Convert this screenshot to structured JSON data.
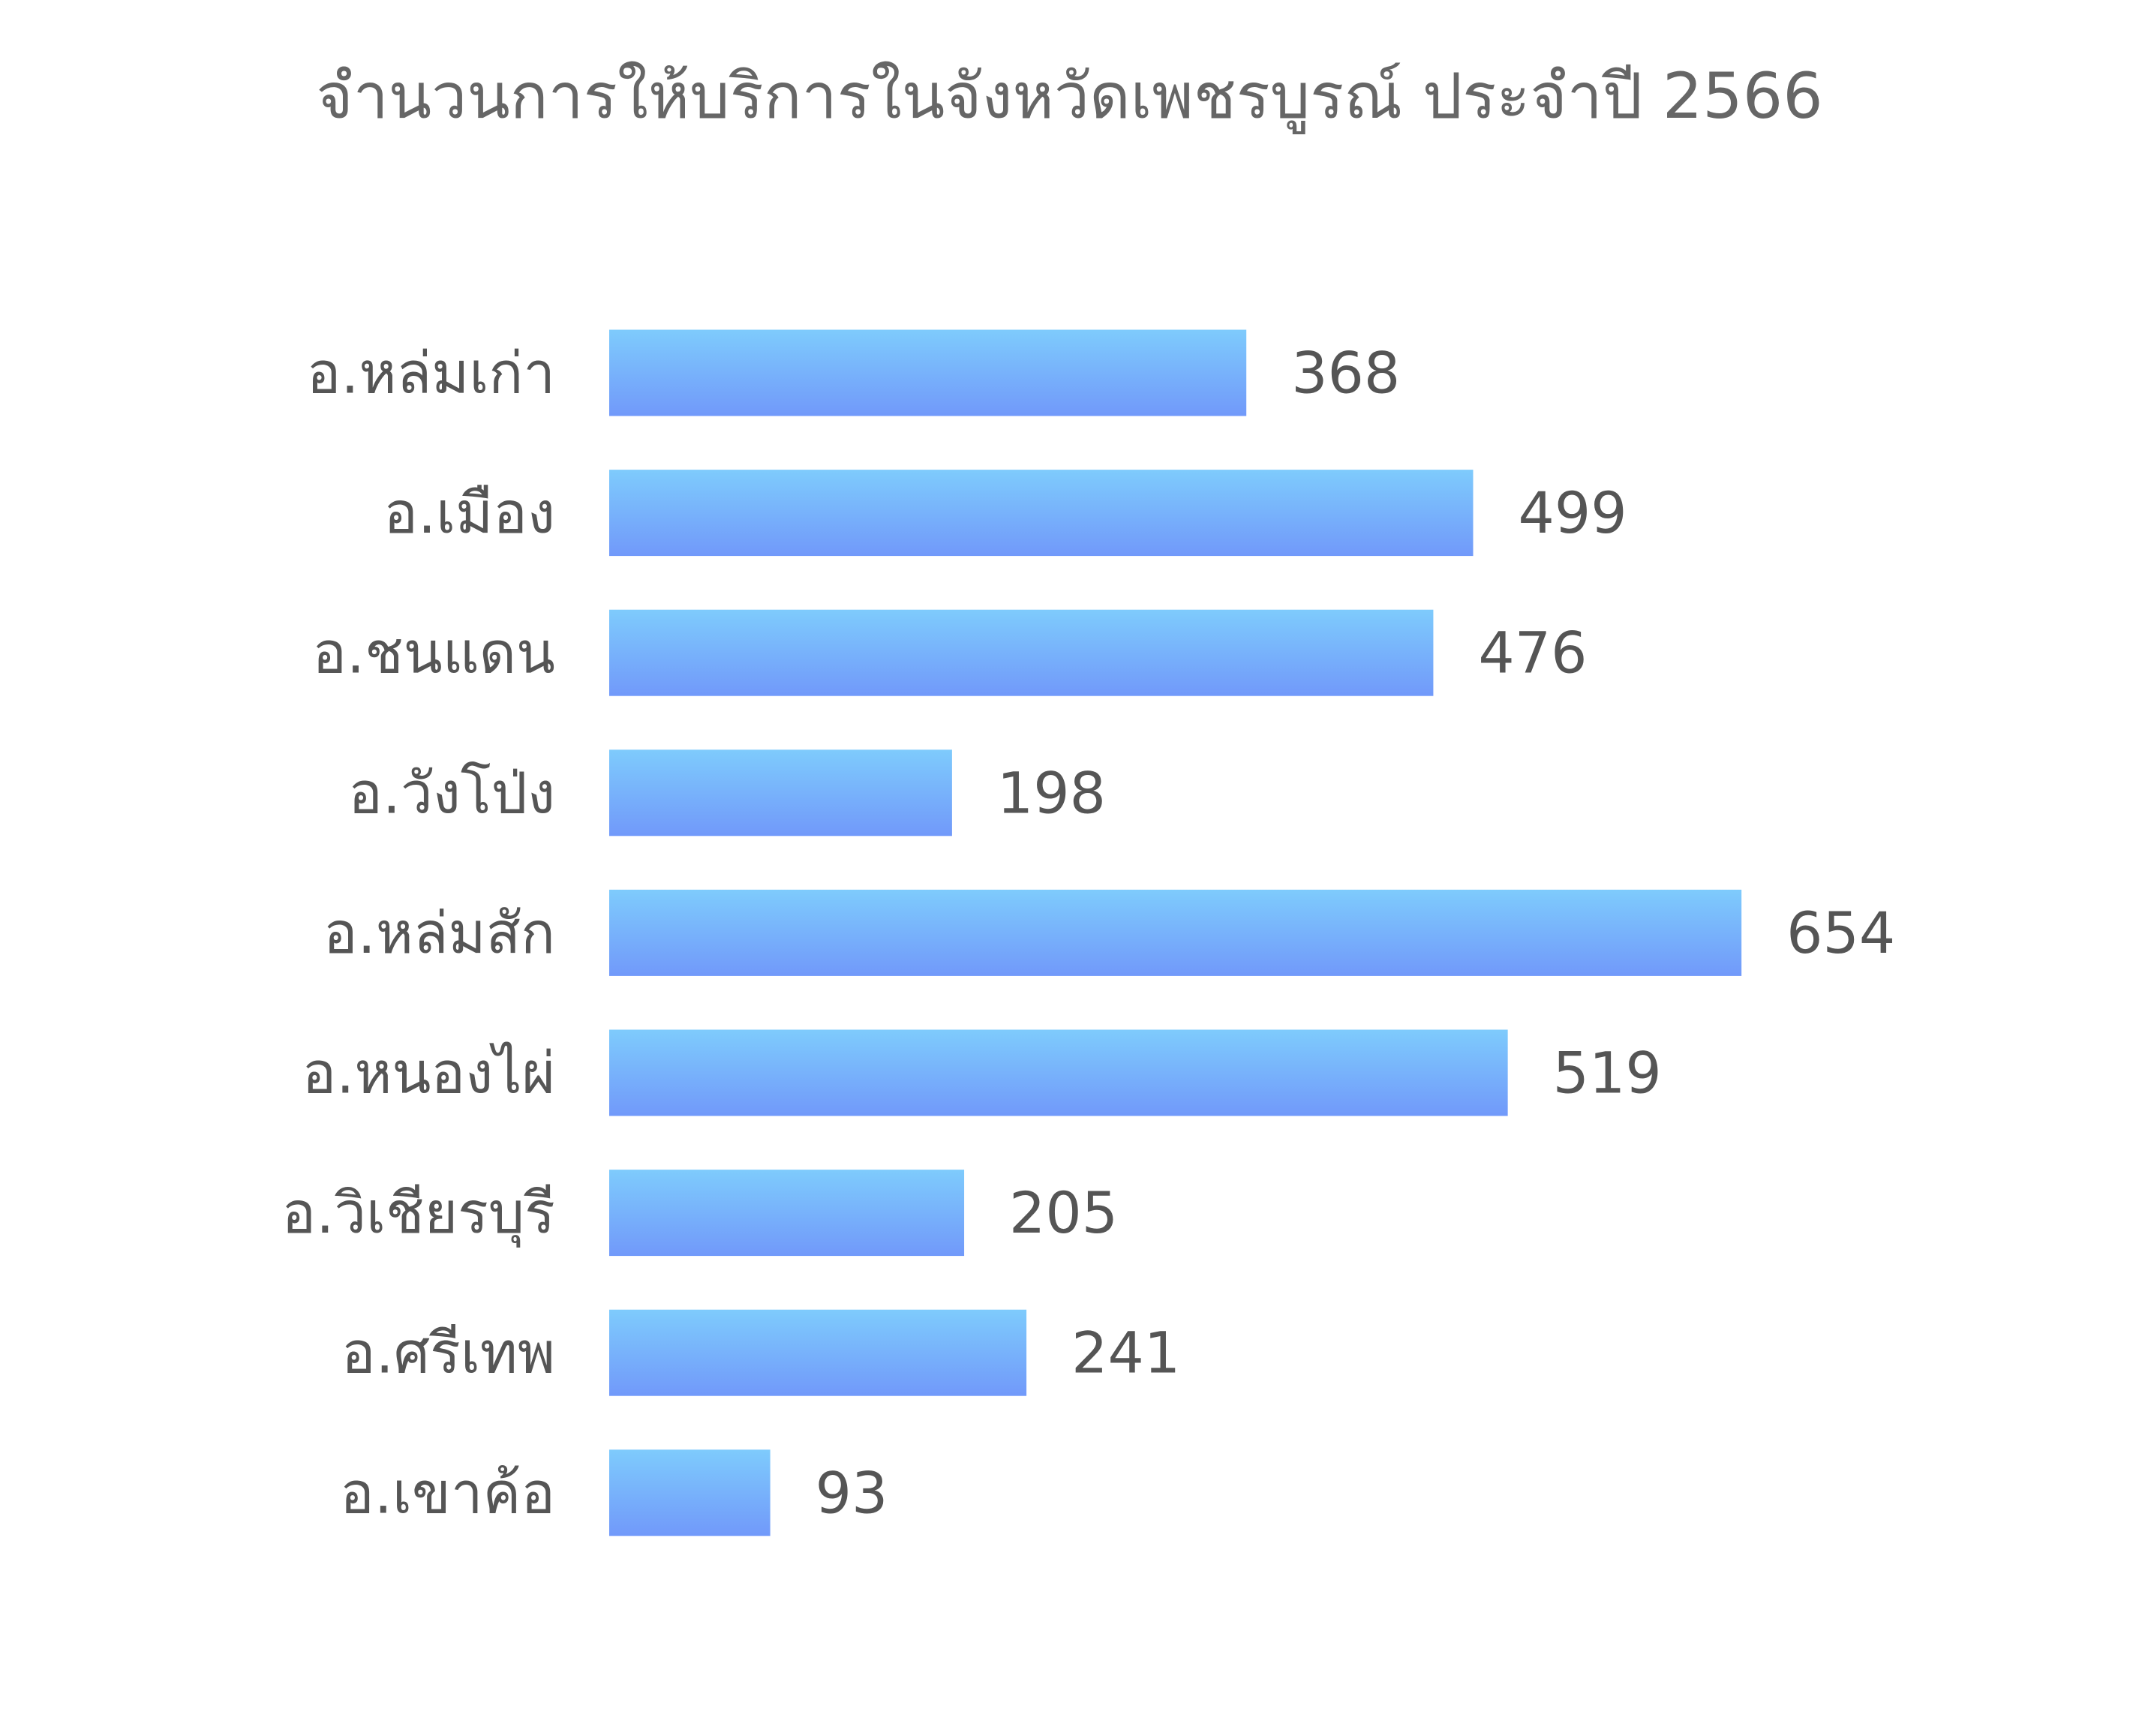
{
  "chart_data": {
    "type": "bar",
    "orientation": "horizontal",
    "title": "จำนวนการให้บริการในจังหวัดเพชรบูรณ์ ประจำปี 2566",
    "categories": [
      "อ.หล่มเก่า",
      "อ.เมือง",
      "อ.ชนแดน",
      "อ.วังโป่ง",
      "อ.หล่มสัก",
      "อ.หนองไผ่",
      "อ.วิเชียรบุรี",
      "อ.ศรีเทพ",
      "อ.เขาค้อ"
    ],
    "values": [
      368,
      499,
      476,
      198,
      654,
      519,
      205,
      241,
      93
    ],
    "data_labels": true,
    "grid": false,
    "legend": "none",
    "bar_gradient": [
      "#7ecbfc",
      "#7199fa"
    ]
  },
  "colors": {
    "title": "#666666",
    "label": "#555555",
    "background": "#ffffff"
  }
}
